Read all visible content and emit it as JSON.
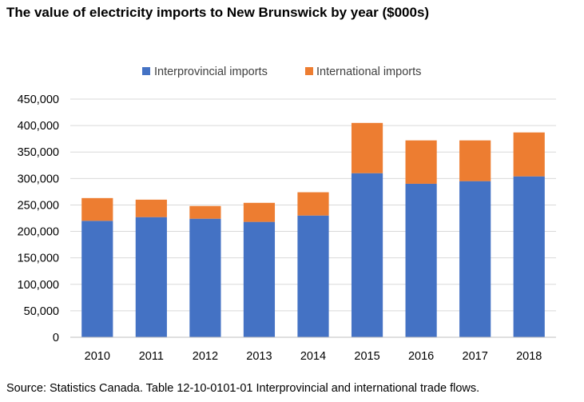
{
  "title": "The value of electricity imports to New Brunswick by year ($000s)",
  "source": "Source: Statistics Canada. Table 12-10-0101-01  Interprovincial and international trade flows.",
  "colors": {
    "interprovincial": "#4472C4",
    "international": "#ED7D31",
    "gridline": "#D9D9D9",
    "axis": "#BFBFBF"
  },
  "chart_data": {
    "type": "bar",
    "stacked": true,
    "categories": [
      "2010",
      "2011",
      "2012",
      "2013",
      "2014",
      "2015",
      "2016",
      "2017",
      "2018"
    ],
    "series": [
      {
        "name": "Interprovincial imports",
        "color": "#4472C4",
        "values": [
          220000,
          227000,
          224000,
          218000,
          230000,
          310000,
          290000,
          295000,
          304000
        ]
      },
      {
        "name": "International imports",
        "color": "#ED7D31",
        "values": [
          43000,
          33000,
          24000,
          36000,
          44000,
          95000,
          82000,
          77000,
          83000
        ]
      }
    ],
    "ylim": [
      0,
      450000
    ],
    "yticks": [
      "0",
      "50,000",
      "100,000",
      "150,000",
      "200,000",
      "250,000",
      "300,000",
      "350,000",
      "400,000",
      "450,000"
    ],
    "ytick_values": [
      0,
      50000,
      100000,
      150000,
      200000,
      250000,
      300000,
      350000,
      400000,
      450000
    ],
    "grid": true,
    "legend_position": "top-center",
    "xlabel": "",
    "ylabel": ""
  }
}
